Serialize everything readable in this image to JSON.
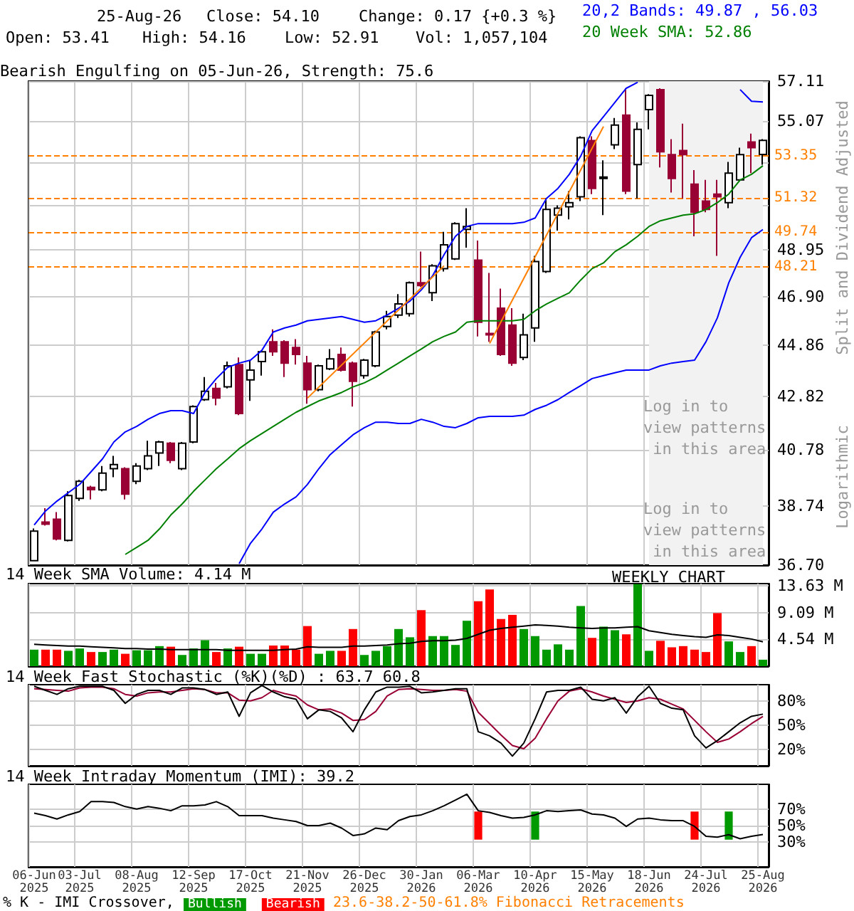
{
  "chart_data": [
    {
      "type": "candlestick",
      "title": "Bearish Engulfing on 05-Jun-26, Strength: 75.6",
      "ylabel": "Split and Dividend Adjusted",
      "annotations": [
        "25-Aug-26",
        "Close: 54.10",
        "Change: 0.17 {+0.3 %}",
        "Open: 53.41",
        "High: 54.16",
        "Low: 52.91",
        "Vol: 1,057,104",
        "Log in to view patterns in this area",
        "Log in to view patterns in this area",
        "Logarithmic"
      ],
      "categories": [
        "06-Jun 2025",
        null,
        null,
        null,
        "03-Jul 2025",
        null,
        null,
        null,
        null,
        "08-Aug 2025",
        null,
        null,
        null,
        null,
        "12-Sep 2025",
        null,
        null,
        null,
        null,
        "17-Oct 2025",
        null,
        null,
        null,
        null,
        "21-Nov 2025",
        null,
        null,
        null,
        null,
        "26-Dec 2025",
        null,
        null,
        null,
        null,
        "30-Jan 2026",
        null,
        null,
        null,
        null,
        "06-Mar 2026",
        null,
        null,
        null,
        null,
        "10-Apr 2026",
        null,
        null,
        null,
        null,
        "15-May 2026",
        null,
        null,
        null,
        null,
        "18-Jun 2026",
        null,
        null,
        null,
        null,
        "24-Jul 2026",
        null,
        null,
        null,
        null,
        "25-Aug 2026"
      ],
      "ohlc": [
        [
          36.85,
          37.95,
          36.85,
          37.86
        ],
        [
          38.17,
          38.66,
          38.05,
          38.1
        ],
        [
          38.27,
          38.52,
          37.54,
          37.59
        ],
        [
          37.54,
          39.26,
          37.5,
          39.11
        ],
        [
          39.01,
          39.67,
          38.92,
          39.62
        ],
        [
          39.4,
          39.46,
          38.97,
          39.32
        ],
        [
          39.31,
          40.18,
          39.26,
          39.92
        ],
        [
          40.08,
          40.55,
          39.77,
          40.23
        ],
        [
          40.08,
          40.13,
          38.97,
          39.16
        ],
        [
          39.62,
          40.28,
          39.52,
          40.18
        ],
        [
          40.08,
          41.12,
          40.03,
          40.55
        ],
        [
          40.66,
          41.12,
          40.18,
          41.07
        ],
        [
          41.02,
          41.07,
          40.28,
          40.39
        ],
        [
          40.08,
          41.07,
          40.03,
          41.02
        ],
        [
          41.07,
          42.47,
          41.02,
          42.42
        ],
        [
          42.69,
          43.58,
          42.64,
          43.02
        ],
        [
          43.13,
          43.35,
          42.47,
          42.75
        ],
        [
          43.19,
          44.2,
          43.13,
          44.03
        ],
        [
          44.08,
          44.37,
          42.09,
          42.15
        ],
        [
          43.47,
          44.26,
          42.64,
          43.86
        ],
        [
          44.2,
          44.66,
          43.64,
          44.6
        ],
        [
          45.01,
          45.52,
          44.43,
          44.6
        ],
        [
          45.01,
          45.07,
          43.58,
          44.14
        ],
        [
          44.77,
          45.12,
          44.08,
          44.49
        ],
        [
          44.14,
          44.43,
          42.53,
          43.08
        ],
        [
          43.08,
          44.08,
          43.02,
          44.03
        ],
        [
          43.91,
          44.71,
          43.86,
          44.31
        ],
        [
          44.49,
          44.77,
          43.8,
          43.86
        ],
        [
          44.14,
          44.2,
          42.42,
          43.41
        ],
        [
          43.64,
          44.31,
          43.52,
          44.26
        ],
        [
          44.03,
          45.46,
          43.97,
          45.41
        ],
        [
          45.64,
          46.3,
          45.52,
          46.06
        ],
        [
          46.12,
          47.01,
          46.0,
          46.59
        ],
        [
          46.18,
          47.56,
          46.06,
          47.5
        ],
        [
          47.5,
          48.87,
          47.32,
          47.38
        ],
        [
          47.07,
          48.31,
          46.71,
          48.24
        ],
        [
          48.12,
          49.76,
          47.99,
          49.18
        ],
        [
          48.55,
          50.2,
          48.5,
          50.14
        ],
        [
          49.88,
          50.85,
          49.05,
          50.01
        ],
        [
          48.49,
          49.37,
          45.23,
          45.82
        ],
        [
          45.35,
          47.93,
          45.01,
          45.29
        ],
        [
          46.41,
          47.25,
          44.43,
          44.49
        ],
        [
          45.7,
          46.41,
          44.03,
          44.14
        ],
        [
          44.37,
          46.18,
          44.26,
          45.29
        ],
        [
          45.58,
          48.68,
          45.01,
          48.43
        ],
        [
          47.99,
          51.31,
          47.93,
          50.79
        ],
        [
          50.53,
          50.98,
          49.82,
          50.85
        ],
        [
          50.92,
          51.65,
          50.33,
          51.11
        ],
        [
          51.38,
          54.3,
          51.18,
          54.23
        ],
        [
          54.09,
          54.3,
          51.51,
          51.78
        ],
        [
          52.25,
          53.12,
          50.53,
          52.32
        ],
        [
          53.88,
          55.22,
          53.67,
          54.86
        ],
        [
          55.36,
          56.74,
          51.51,
          51.65
        ],
        [
          52.92,
          55.0,
          51.31,
          54.65
        ],
        [
          55.64,
          56.44,
          54.65,
          56.37
        ],
        [
          56.67,
          56.74,
          52.78,
          53.54
        ],
        [
          53.4,
          54.16,
          51.58,
          52.25
        ],
        [
          53.6,
          54.93,
          51.31,
          53.4
        ],
        [
          51.98,
          52.65,
          49.56,
          50.66
        ],
        [
          51.18,
          52.18,
          50.66,
          50.79
        ],
        [
          51.51,
          52.18,
          48.68,
          51.38
        ],
        [
          51.11,
          53.05,
          50.85,
          52.51
        ],
        [
          52.18,
          53.74,
          52.11,
          53.4
        ],
        [
          54.02,
          54.44,
          52.51,
          53.74
        ],
        [
          53.41,
          54.16,
          52.91,
          54.1
        ]
      ],
      "colors": [
        "#ffffff",
        "#990033",
        "#990033",
        "#ffffff",
        "#ffffff",
        "#990033",
        "#ffffff",
        "#ffffff",
        "#990033",
        "#ffffff",
        "#ffffff",
        "#ffffff",
        "#990033",
        "#ffffff",
        "#ffffff",
        "#ffffff",
        "#990033",
        "#ffffff",
        "#990033",
        "#ffffff",
        "#ffffff",
        "#990033",
        "#990033",
        "#990033",
        "#990033",
        "#ffffff",
        "#ffffff",
        "#990033",
        "#990033",
        "#ffffff",
        "#ffffff",
        "#ffffff",
        "#ffffff",
        "#ffffff",
        "#990033",
        "#ffffff",
        "#ffffff",
        "#ffffff",
        "#ffffff",
        "#990033",
        "#990033",
        "#990033",
        "#990033",
        "#ffffff",
        "#ffffff",
        "#ffffff",
        "#ffffff",
        "#ffffff",
        "#ffffff",
        "#990033",
        "#ffffff",
        "#ffffff",
        "#990033",
        "#ffffff",
        "#ffffff",
        "#990033",
        "#990033",
        "#990033",
        "#990033",
        "#990033",
        "#990033",
        "#ffffff",
        "#ffffff",
        "#990033",
        "#ffffff"
      ],
      "series": [
        {
          "type": "line",
          "name": "20,2 Bands: 49.87 , 56.03",
          "color": "#0000ff",
          "values": [
            38.07,
            38.56,
            38.91,
            39.21,
            39.51,
            39.97,
            40.44,
            41.07,
            41.45,
            41.66,
            41.93,
            42.15,
            42.26,
            42.26,
            42.15,
            42.97,
            43.52,
            43.97,
            44.14,
            44.26,
            44.66,
            45.41,
            45.58,
            45.7,
            45.88,
            45.94,
            46.0,
            46.06,
            45.94,
            45.82,
            45.88,
            46.12,
            46.41,
            46.71,
            47.19,
            47.81,
            48.74,
            49.56,
            50.01,
            50.14,
            50.14,
            50.14,
            50.14,
            50.2,
            50.4,
            51.31,
            51.78,
            52.45,
            53.33,
            54.58,
            55.29,
            56.01,
            56.74,
            57.05,
            null,
            null,
            null,
            null,
            null,
            null,
            null,
            null,
            56.67,
            56.07,
            56.03
          ]
        },
        {
          "type": "line",
          "color": "#0000ff",
          "values": [
            null,
            null,
            null,
            null,
            null,
            null,
            null,
            null,
            null,
            null,
            null,
            null,
            null,
            null,
            null,
            null,
            null,
            null,
            36.75,
            37.44,
            37.93,
            38.52,
            38.81,
            39.06,
            39.51,
            40.08,
            40.6,
            40.97,
            41.34,
            41.61,
            41.82,
            41.82,
            41.77,
            41.77,
            41.93,
            41.82,
            41.66,
            41.61,
            41.77,
            41.99,
            42.04,
            42.04,
            42.04,
            42.09,
            42.31,
            42.47,
            42.69,
            42.97,
            43.24,
            43.52,
            43.64,
            43.75,
            43.86,
            43.86,
            43.86,
            44.03,
            44.14,
            44.2,
            44.26,
            45.01,
            46.0,
            47.5,
            48.62,
            49.5,
            49.87
          ]
        },
        {
          "type": "line",
          "name": "20 Week SMA: 52.86",
          "color": "#008000",
          "values": [
            null,
            null,
            null,
            null,
            null,
            null,
            null,
            null,
            37.06,
            37.3,
            37.54,
            37.93,
            38.42,
            38.81,
            39.26,
            39.67,
            40.08,
            40.44,
            40.82,
            41.12,
            41.39,
            41.66,
            41.93,
            42.2,
            42.42,
            42.64,
            42.8,
            42.97,
            43.19,
            43.35,
            43.58,
            43.86,
            44.14,
            44.43,
            44.71,
            45.01,
            45.23,
            45.41,
            45.82,
            45.88,
            45.88,
            45.88,
            45.88,
            45.94,
            46.3,
            46.59,
            46.83,
            47.07,
            47.62,
            48.12,
            48.37,
            48.87,
            49.18,
            49.56,
            50.01,
            50.27,
            50.4,
            50.53,
            50.59,
            50.79,
            51.11,
            51.51,
            52.18,
            52.45,
            52.86
          ]
        },
        {
          "type": "line",
          "color": "#ff8000",
          "values": [
            null,
            null,
            null,
            null,
            null,
            null,
            null,
            null,
            null,
            null,
            null,
            null,
            null,
            null,
            null,
            null,
            null,
            null,
            null,
            null,
            null,
            null,
            null,
            null,
            42.75,
            null,
            null,
            null,
            null,
            null,
            null,
            null,
            null,
            null,
            null,
            null,
            48.24,
            null,
            null,
            null,
            null,
            null,
            null,
            null,
            null,
            null,
            null,
            null,
            null,
            null,
            null,
            null,
            null,
            null,
            null,
            null,
            null,
            null,
            null,
            null,
            null,
            null,
            null,
            null,
            null
          ]
        },
        {
          "type": "line",
          "color": "#ff8000",
          "values": [
            null,
            null,
            null,
            null,
            null,
            null,
            null,
            null,
            null,
            null,
            null,
            null,
            null,
            null,
            null,
            null,
            null,
            null,
            null,
            null,
            null,
            null,
            null,
            null,
            null,
            null,
            null,
            null,
            null,
            null,
            null,
            null,
            null,
            null,
            null,
            null,
            null,
            null,
            null,
            null,
            44.94,
            null,
            null,
            null,
            null,
            null,
            null,
            null,
            null,
            null,
            54.79,
            null,
            null,
            null,
            null,
            null,
            null,
            null,
            null,
            null,
            null,
            null,
            null,
            null,
            null
          ]
        }
      ],
      "log": true,
      "ylim": [
        36.7,
        57.11
      ],
      "yticks": [
        {
          "value": 36.7,
          "label": "36.70"
        },
        {
          "value": 38.74,
          "label": "38.74"
        },
        {
          "value": 40.78,
          "label": "40.78"
        },
        {
          "value": 42.82,
          "label": "42.82"
        },
        {
          "value": 44.86,
          "label": "44.86"
        },
        {
          "value": 46.9,
          "label": "46.90"
        },
        {
          "value": 48.95,
          "label": "48.95"
        },
        {
          "value": 50.99,
          "label": null
        },
        {
          "value": 53.03,
          "label": null
        },
        {
          "value": 55.07,
          "label": "55.07"
        },
        {
          "value": 57.11,
          "label": "57.11"
        }
      ],
      "ref_lines": [
        {
          "axis": "y",
          "value": 53.35,
          "label": "53.35",
          "color": "#ff8000",
          "line_style": "dashed"
        },
        {
          "axis": "y",
          "value": 51.32,
          "label": "51.32",
          "color": "#ff8000",
          "line_style": "dashed"
        },
        {
          "axis": "y",
          "value": 49.74,
          "label": "49.74",
          "color": "#ff8000",
          "line_style": "dashed"
        },
        {
          "axis": "y",
          "value": 48.21,
          "label": "48.21",
          "color": "#ff8000",
          "line_style": "dashed"
        }
      ],
      "bands": [
        {
          "axis": "x",
          "from": "18-Jun 2026",
          "to": "25-Aug 2026",
          "color": "#f2f2f2"
        }
      ],
      "grid": true,
      "legend": "top right",
      "marker": "none",
      "tick_labels": "y"
    },
    {
      "type": "bar",
      "title": "14 Week SMA Volume: 4.14 M",
      "annotations": [
        "WEEKLY CHART"
      ],
      "categories": [
        "06-Jun 2025",
        null,
        null,
        null,
        "03-Jul 2025",
        null,
        null,
        null,
        null,
        "08-Aug 2025",
        null,
        null,
        null,
        null,
        "12-Sep 2025",
        null,
        null,
        null,
        null,
        "17-Oct 2025",
        null,
        null,
        null,
        null,
        "21-Nov 2025",
        null,
        null,
        null,
        null,
        "26-Dec 2025",
        null,
        null,
        null,
        null,
        "30-Jan 2026",
        null,
        null,
        null,
        null,
        "06-Mar 2026",
        null,
        null,
        null,
        null,
        "10-Apr 2026",
        null,
        null,
        null,
        null,
        "15-May 2026",
        null,
        null,
        null,
        null,
        "18-Jun 2026",
        null,
        null,
        null,
        null,
        "24-Jul 2026",
        null,
        null,
        null,
        null,
        "25-Aug 2026"
      ],
      "series": [
        {
          "type": "bar",
          "values": [
            2.8,
            2.8,
            2.8,
            2.6,
            3.0,
            2.4,
            2.4,
            2.8,
            2.1,
            2.7,
            2.7,
            3.4,
            3.3,
            1.9,
            3.0,
            4.4,
            2.4,
            3.0,
            3.3,
            2.1,
            2.1,
            3.5,
            3.5,
            2.8,
            6.8,
            2.1,
            2.6,
            2.6,
            6.3,
            1.9,
            2.6,
            3.4,
            6.3,
            4.9,
            9.5,
            5.1,
            5.1,
            3.6,
            7.7,
            11.0,
            13.0,
            8.0,
            8.7,
            6.3,
            5.1,
            2.8,
            3.7,
            2.8,
            10.2,
            4.8,
            6.7,
            6.1,
            5.4,
            13.9,
            2.6,
            4.3,
            3.2,
            3.4,
            2.8,
            2.4,
            9.0,
            4.2,
            2.4,
            3.4,
            1.1
          ],
          "colors": [
            "#009900",
            "#ff0000",
            "#ff0000",
            "#009900",
            "#009900",
            "#ff0000",
            "#009900",
            "#009900",
            "#ff0000",
            "#009900",
            "#009900",
            "#009900",
            "#ff0000",
            "#009900",
            "#009900",
            "#009900",
            "#ff0000",
            "#009900",
            "#ff0000",
            "#009900",
            "#009900",
            "#ff0000",
            "#ff0000",
            "#ff0000",
            "#ff0000",
            "#009900",
            "#009900",
            "#ff0000",
            "#ff0000",
            "#009900",
            "#009900",
            "#009900",
            "#009900",
            "#009900",
            "#ff0000",
            "#009900",
            "#009900",
            "#009900",
            "#009900",
            "#ff0000",
            "#ff0000",
            "#ff0000",
            "#ff0000",
            "#009900",
            "#009900",
            "#009900",
            "#009900",
            "#009900",
            "#009900",
            "#ff0000",
            "#009900",
            "#009900",
            "#ff0000",
            "#009900",
            "#009900",
            "#ff0000",
            "#ff0000",
            "#ff0000",
            "#ff0000",
            "#ff0000",
            "#ff0000",
            "#009900",
            "#009900",
            "#ff0000",
            "#009900"
          ]
        },
        {
          "type": "line",
          "color": "#000000",
          "values": [
            3.7,
            3.6,
            3.5,
            3.4,
            3.4,
            3.3,
            3.2,
            3.1,
            3.0,
            3.0,
            2.9,
            2.9,
            2.8,
            2.8,
            2.8,
            2.8,
            2.8,
            2.7,
            2.7,
            2.7,
            2.7,
            2.7,
            2.8,
            2.9,
            3.3,
            3.2,
            3.2,
            3.2,
            3.4,
            3.4,
            3.5,
            3.6,
            3.8,
            3.9,
            4.2,
            4.3,
            4.3,
            4.4,
            4.7,
            5.4,
            6.1,
            6.4,
            6.6,
            6.8,
            7.0,
            6.9,
            6.8,
            6.6,
            6.5,
            6.4,
            6.5,
            6.5,
            6.6,
            6.7,
            6.0,
            5.7,
            5.4,
            5.2,
            5.0,
            4.9,
            5.3,
            5.2,
            4.9,
            4.6,
            4.14
          ]
        }
      ],
      "ylim": [
        0,
        14.0
      ],
      "yticks": [
        {
          "value": 4.54,
          "label": "4.54 M"
        },
        {
          "value": 9.09,
          "label": "9.09 M"
        },
        {
          "value": 13.63,
          "label": "13.63 M"
        }
      ],
      "grid": true,
      "marker": "none",
      "tick_labels": "y"
    },
    {
      "type": "line",
      "title": "14 Week Fast Stochastic (%K)(%D) : 63.7 60.8",
      "categories": [
        "06-Jun 2025",
        null,
        null,
        null,
        "03-Jul 2025",
        null,
        null,
        null,
        null,
        "08-Aug 2025",
        null,
        null,
        null,
        null,
        "12-Sep 2025",
        null,
        null,
        null,
        null,
        "17-Oct 2025",
        null,
        null,
        null,
        null,
        "21-Nov 2025",
        null,
        null,
        null,
        null,
        "26-Dec 2025",
        null,
        null,
        null,
        null,
        "30-Jan 2026",
        null,
        null,
        null,
        null,
        "06-Mar 2026",
        null,
        null,
        null,
        null,
        "10-Apr 2026",
        null,
        null,
        null,
        null,
        "15-May 2026",
        null,
        null,
        null,
        null,
        "18-Jun 2026",
        null,
        null,
        null,
        null,
        "24-Jul 2026",
        null,
        null,
        null,
        null,
        "25-Aug 2026"
      ],
      "series": [
        {
          "color": "#990033",
          "values": [
            95,
            94,
            93,
            92,
            96,
            97,
            97,
            95,
            88,
            86,
            90,
            91,
            91,
            93,
            95,
            94,
            90,
            90,
            81,
            80,
            84,
            93,
            89,
            86,
            75,
            69,
            70,
            65,
            56,
            57,
            67,
            86,
            94,
            95,
            94,
            93,
            93,
            94,
            92,
            66,
            52,
            38,
            25,
            21,
            34,
            58,
            80,
            92,
            95,
            91,
            86,
            82,
            78,
            80,
            84,
            82,
            76,
            70,
            56,
            42,
            29,
            33,
            42,
            52,
            60.8
          ]
        },
        {
          "color": "#000000",
          "values": [
            98,
            93,
            88,
            95,
            98,
            98,
            98,
            93,
            77,
            88,
            93,
            93,
            88,
            96,
            96,
            94,
            88,
            91,
            61,
            90,
            99,
            91,
            85,
            82,
            58,
            69,
            67,
            59,
            42,
            69,
            91,
            97,
            97,
            98,
            90,
            91,
            93,
            95,
            95,
            42,
            37,
            28,
            12,
            28,
            58,
            91,
            93,
            93,
            97,
            82,
            80,
            84,
            65,
            85,
            98,
            77,
            71,
            69,
            37,
            22,
            31,
            42,
            53,
            61,
            63.7
          ]
        }
      ],
      "ylim": [
        0,
        100
      ],
      "yticks": [
        {
          "value": 20,
          "label": "20%"
        },
        {
          "value": 50,
          "label": "50%"
        },
        {
          "value": 80,
          "label": "80%"
        }
      ],
      "grid": true,
      "marker": "none",
      "tick_labels": "y"
    },
    {
      "type": "line",
      "title": "14 Week Intraday Momentum (IMI): 39.2",
      "annotations": [
        "% K - IMI Crossover,",
        "23.6-38.2-50-61.8% Fibonacci Retracements"
      ],
      "categories": [
        "06-Jun 2025",
        null,
        null,
        null,
        "03-Jul 2025",
        null,
        null,
        null,
        null,
        "08-Aug 2025",
        null,
        null,
        null,
        null,
        "12-Sep 2025",
        null,
        null,
        null,
        null,
        "17-Oct 2025",
        null,
        null,
        null,
        null,
        "21-Nov 2025",
        null,
        null,
        null,
        null,
        "26-Dec 2025",
        null,
        null,
        null,
        null,
        "30-Jan 2026",
        null,
        null,
        null,
        null,
        "06-Mar 2026",
        null,
        null,
        null,
        null,
        "10-Apr 2026",
        null,
        null,
        null,
        null,
        "15-May 2026",
        null,
        null,
        null,
        null,
        "18-Jun 2026",
        null,
        null,
        null,
        null,
        "24-Jul 2026",
        null,
        null,
        null,
        null,
        "25-Aug 2026"
      ],
      "series": [
        {
          "color": "#000000",
          "values": [
            65,
            62,
            58,
            63,
            67,
            79,
            79,
            78,
            73,
            70,
            73,
            71,
            68,
            74,
            74,
            75,
            79,
            73,
            62,
            62,
            62,
            59,
            57,
            55,
            50,
            50,
            53,
            47,
            38,
            40,
            47,
            45,
            56,
            61,
            63,
            68,
            74,
            81,
            88,
            68,
            66,
            62,
            59,
            60,
            63,
            68,
            67,
            68,
            69,
            64,
            63,
            59,
            49,
            58,
            59,
            57,
            56,
            56,
            49,
            37,
            36,
            39,
            34,
            37,
            39.2
          ]
        },
        {
          "type": "bar",
          "name": "Bullish",
          "color": "#009900",
          "values": [
            null,
            null,
            null,
            null,
            null,
            null,
            null,
            null,
            null,
            null,
            null,
            null,
            null,
            null,
            null,
            null,
            null,
            null,
            null,
            null,
            null,
            null,
            null,
            null,
            null,
            null,
            null,
            null,
            null,
            null,
            null,
            null,
            null,
            null,
            null,
            null,
            null,
            null,
            null,
            null,
            null,
            null,
            null,
            null,
            34,
            null,
            null,
            null,
            null,
            null,
            null,
            null,
            null,
            null,
            null,
            null,
            null,
            null,
            null,
            null,
            null,
            34,
            null,
            null,
            null
          ],
          "base": [
            null,
            null,
            null,
            null,
            null,
            null,
            null,
            null,
            null,
            null,
            null,
            null,
            null,
            null,
            null,
            null,
            null,
            null,
            null,
            null,
            null,
            null,
            null,
            null,
            null,
            null,
            null,
            null,
            null,
            null,
            null,
            null,
            null,
            null,
            null,
            null,
            null,
            null,
            null,
            null,
            null,
            null,
            null,
            null,
            33,
            null,
            null,
            null,
            null,
            null,
            null,
            null,
            null,
            null,
            null,
            null,
            null,
            null,
            null,
            null,
            null,
            33,
            null,
            null,
            null
          ]
        },
        {
          "type": "bar",
          "name": "Bearish",
          "color": "#ff0000",
          "values": [
            null,
            null,
            null,
            null,
            null,
            null,
            null,
            null,
            null,
            null,
            null,
            null,
            null,
            null,
            null,
            null,
            null,
            null,
            null,
            null,
            null,
            null,
            null,
            null,
            null,
            null,
            null,
            null,
            null,
            null,
            null,
            null,
            null,
            null,
            null,
            null,
            null,
            null,
            null,
            34,
            null,
            null,
            null,
            null,
            null,
            null,
            null,
            null,
            null,
            null,
            null,
            null,
            null,
            null,
            null,
            null,
            null,
            null,
            34,
            null,
            null,
            null,
            null,
            null,
            null
          ],
          "base": [
            null,
            null,
            null,
            null,
            null,
            null,
            null,
            null,
            null,
            null,
            null,
            null,
            null,
            null,
            null,
            null,
            null,
            null,
            null,
            null,
            null,
            null,
            null,
            null,
            null,
            null,
            null,
            null,
            null,
            null,
            null,
            null,
            null,
            null,
            null,
            null,
            null,
            null,
            null,
            33,
            null,
            null,
            null,
            null,
            null,
            null,
            null,
            null,
            null,
            null,
            null,
            null,
            null,
            null,
            null,
            null,
            null,
            null,
            33,
            null,
            null,
            null,
            null,
            null,
            null
          ]
        }
      ],
      "ylim": [
        0,
        100
      ],
      "yticks": [
        {
          "value": 30,
          "label": "30%"
        },
        {
          "value": 50,
          "label": "50%"
        },
        {
          "value": 70,
          "label": "70%"
        }
      ],
      "grid": true,
      "legend": "bottom",
      "marker": "none"
    }
  ]
}
